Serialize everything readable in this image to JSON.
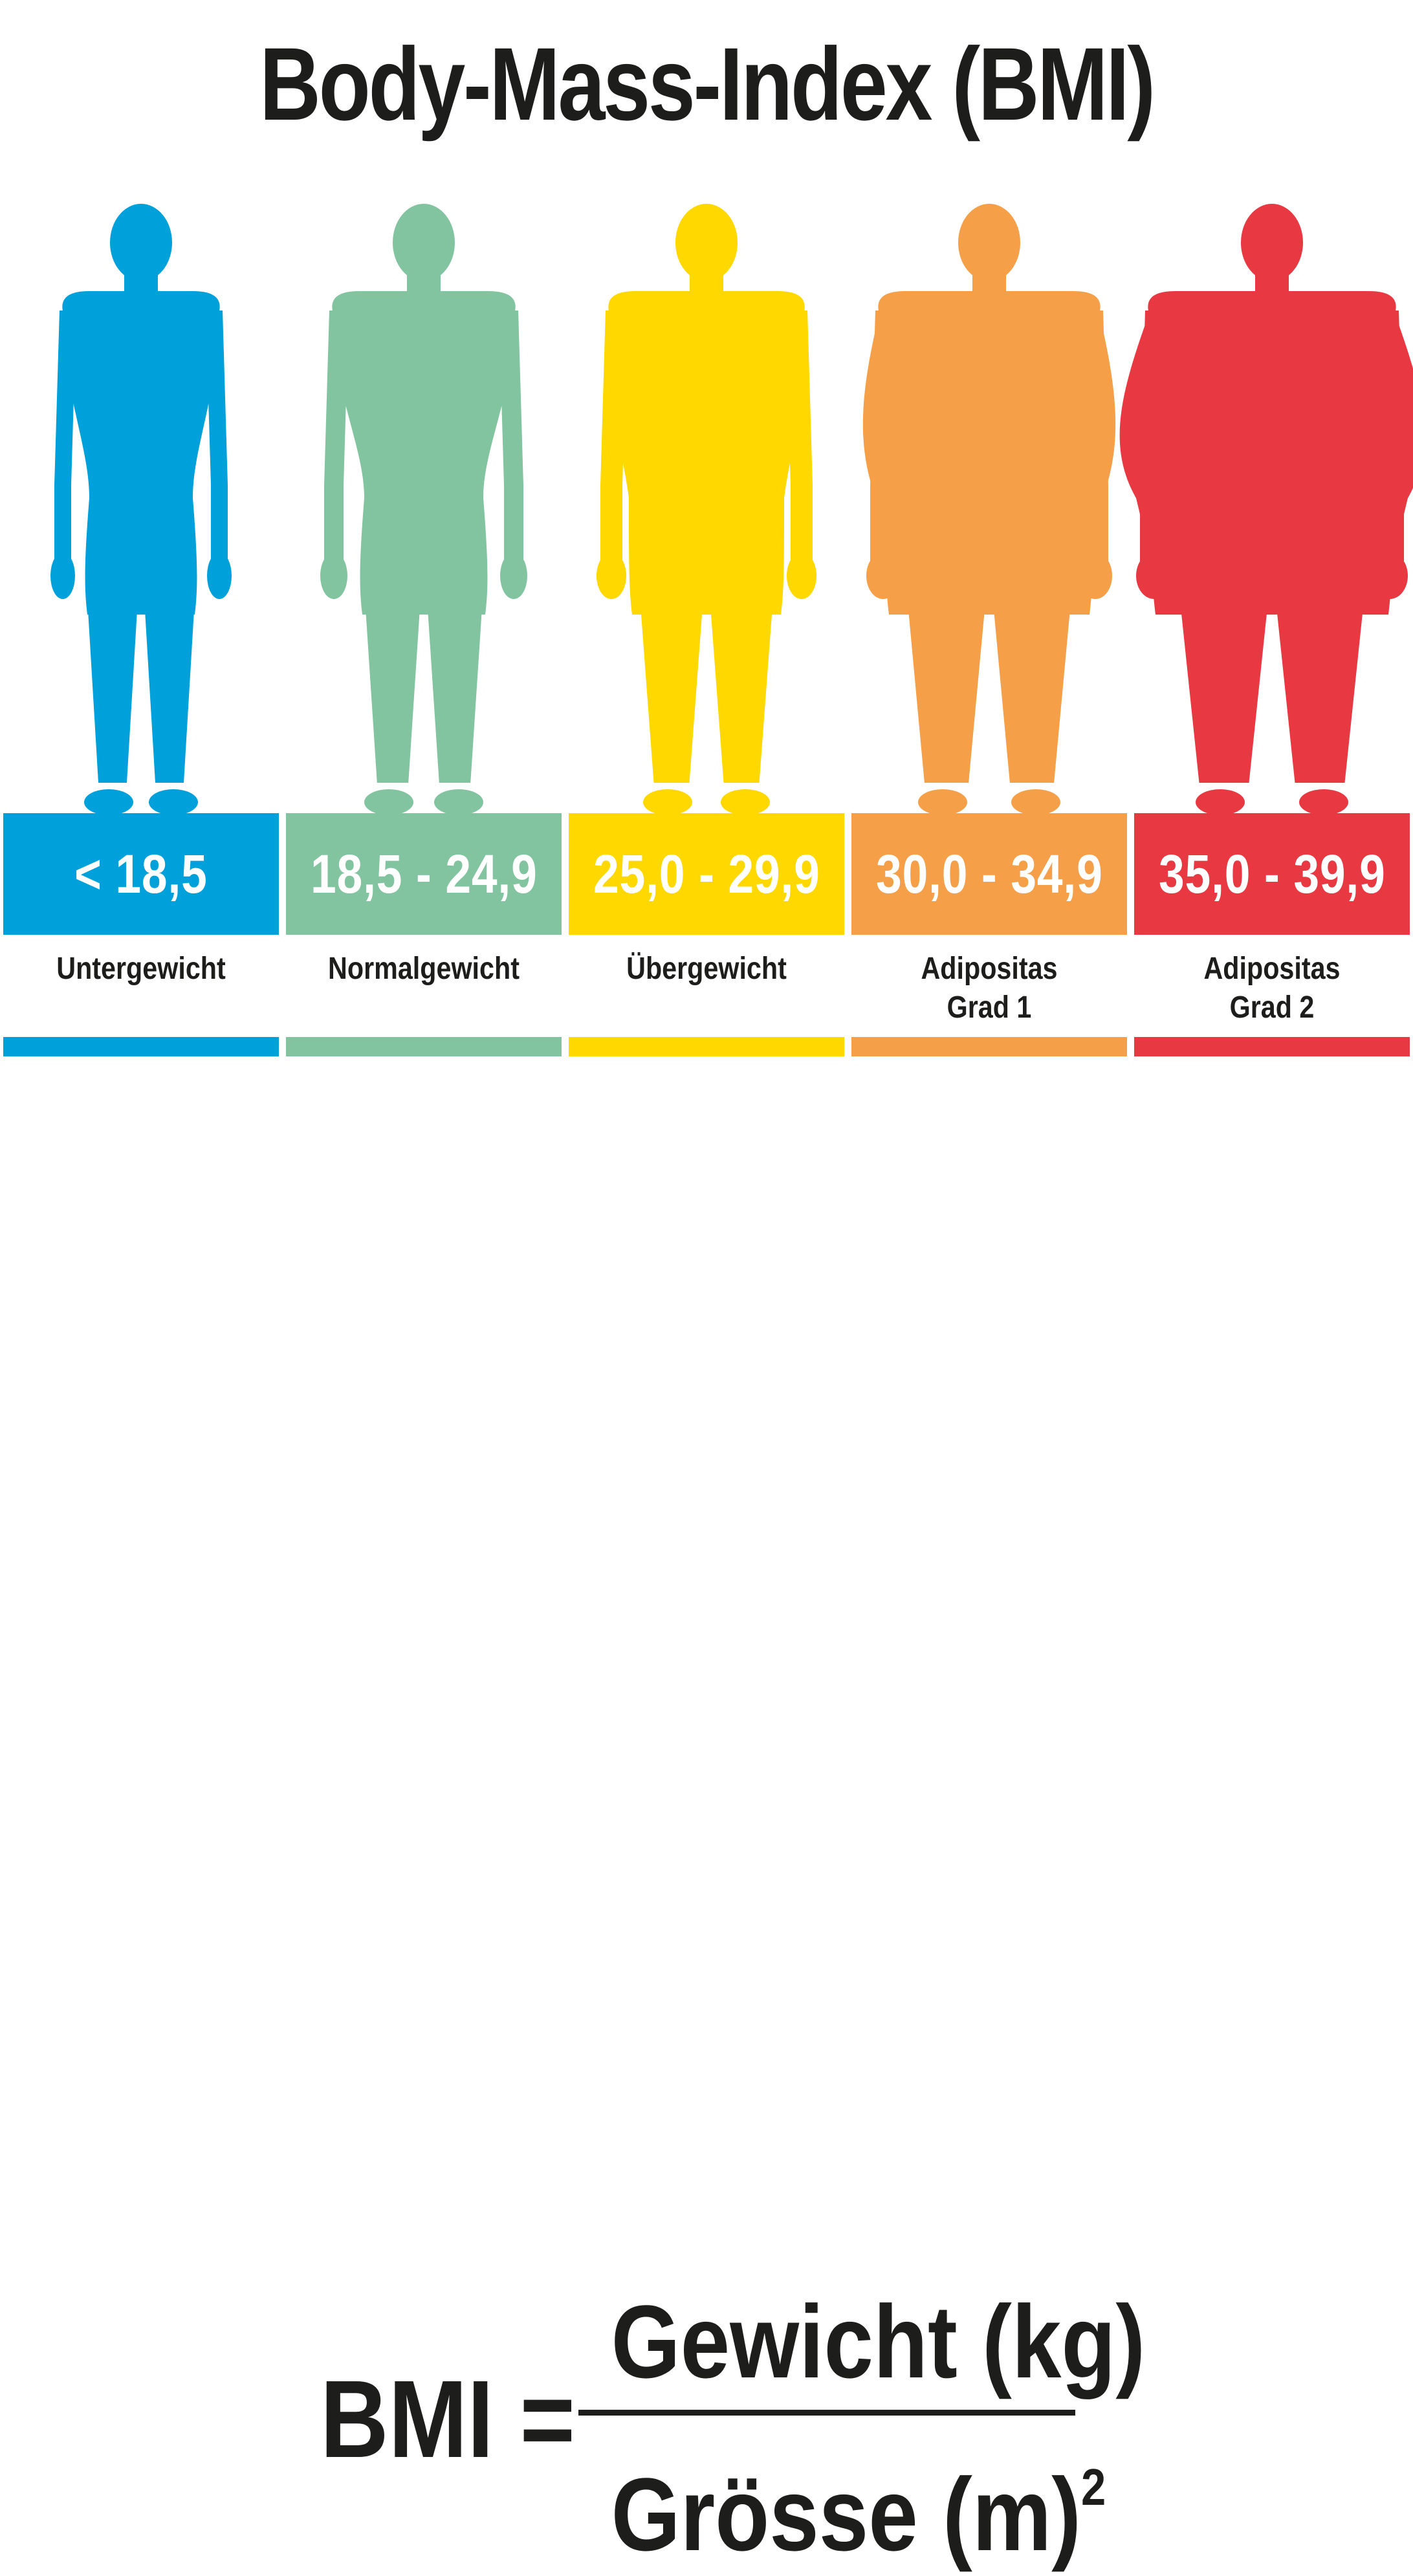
{
  "title": "Body-Mass-Index (BMI)",
  "categories": [
    {
      "range": "< 18,5",
      "label_lines": [
        "Untergewicht"
      ],
      "color": "#00A1DA",
      "build": "slim"
    },
    {
      "range": "18,5 - 24,9",
      "label_lines": [
        "Normalgewicht"
      ],
      "color": "#82C4A0",
      "build": "normal"
    },
    {
      "range": "25,0 - 29,9",
      "label_lines": [
        "Übergewicht"
      ],
      "color": "#FFD800",
      "build": "overweight"
    },
    {
      "range": "30,0 - 34,9",
      "label_lines": [
        "Adipositas",
        "Grad 1"
      ],
      "color": "#F5A048",
      "build": "obese1"
    },
    {
      "range": "35,0 - 39,9",
      "label_lines": [
        "Adipositas",
        "Grad 2"
      ],
      "color": "#E83842",
      "build": "obese2"
    }
  ],
  "formula": {
    "lhs": "BMI =",
    "numerator": "Gewicht (kg)",
    "denominator_base": "Grösse (m)",
    "denominator_exponent": "2"
  }
}
